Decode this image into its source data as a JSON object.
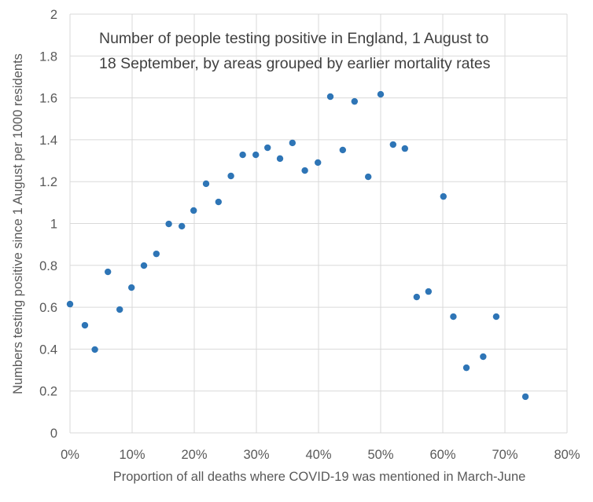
{
  "chart_data": {
    "type": "scatter",
    "title": [
      "Number of people testing positive in England, 1 August to",
      "18 September, by areas grouped by earlier mortality rates"
    ],
    "xlabel": "Proportion of all deaths where COVID-19 was mentioned in March-June",
    "ylabel": "Numbers testing positive since 1 August per 1000 residents",
    "xlim": [
      0,
      0.8
    ],
    "ylim": [
      0,
      2
    ],
    "xticks": [
      0,
      0.1,
      0.2,
      0.3,
      0.4,
      0.5,
      0.6,
      0.7,
      0.8
    ],
    "xtick_labels": [
      "0%",
      "10%",
      "20%",
      "30%",
      "40%",
      "50%",
      "60%",
      "70%",
      "80%"
    ],
    "yticks": [
      0,
      0.2,
      0.4,
      0.6,
      0.8,
      1,
      1.2,
      1.4,
      1.6,
      1.8,
      2
    ],
    "ytick_labels": [
      "0",
      "0.2",
      "0.4",
      "0.6",
      "0.8",
      "1",
      "1.2",
      "1.4",
      "1.6",
      "1.8",
      "2"
    ],
    "grid": true,
    "marker_color": "#2e75b6",
    "points": [
      [
        0.0,
        0.615
      ],
      [
        0.024,
        0.514
      ],
      [
        0.04,
        0.398
      ],
      [
        0.061,
        0.769
      ],
      [
        0.08,
        0.589
      ],
      [
        0.099,
        0.694
      ],
      [
        0.119,
        0.799
      ],
      [
        0.139,
        0.855
      ],
      [
        0.159,
        0.998
      ],
      [
        0.18,
        0.987
      ],
      [
        0.199,
        1.062
      ],
      [
        0.219,
        1.19
      ],
      [
        0.239,
        1.103
      ],
      [
        0.259,
        1.227
      ],
      [
        0.278,
        1.328
      ],
      [
        0.299,
        1.328
      ],
      [
        0.318,
        1.362
      ],
      [
        0.338,
        1.31
      ],
      [
        0.358,
        1.385
      ],
      [
        0.378,
        1.253
      ],
      [
        0.399,
        1.291
      ],
      [
        0.419,
        1.606
      ],
      [
        0.439,
        1.351
      ],
      [
        0.458,
        1.583
      ],
      [
        0.48,
        1.223
      ],
      [
        0.5,
        1.617
      ],
      [
        0.52,
        1.377
      ],
      [
        0.539,
        1.358
      ],
      [
        0.558,
        0.649
      ],
      [
        0.577,
        0.675
      ],
      [
        0.601,
        1.129
      ],
      [
        0.617,
        0.555
      ],
      [
        0.638,
        0.311
      ],
      [
        0.665,
        0.364
      ],
      [
        0.686,
        0.555
      ],
      [
        0.733,
        0.173
      ]
    ]
  }
}
